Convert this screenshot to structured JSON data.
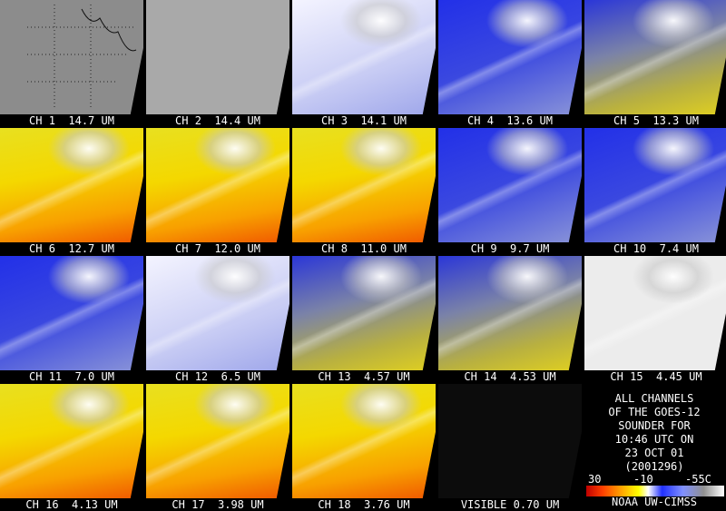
{
  "panels": [
    "CH 1  14.7 UM",
    "CH 2  14.4 UM",
    "CH 3  14.1 UM",
    "CH 4  13.6 UM",
    "CH 5  13.3 UM",
    "CH 6  12.7 UM",
    "CH 7  12.0 UM",
    "CH 8  11.0 UM",
    "CH 9  9.7 UM",
    "CH 10  7.4 UM",
    "CH 11  7.0 UM",
    "CH 12  6.5 UM",
    "CH 13  4.57 UM",
    "CH 14  4.53 UM",
    "CH 15  4.45 UM",
    "CH 16  4.13 UM",
    "CH 17  3.98 UM",
    "CH 18  3.76 UM",
    "VISIBLE 0.70 UM"
  ],
  "legend": {
    "lines": [
      "ALL CHANNELS",
      "OF THE GOES-12",
      "SOUNDER FOR",
      "10:46 UTC ON",
      "23 OCT 01",
      "(2001296)"
    ],
    "scale_labels": [
      "30",
      "-10",
      "-55C"
    ],
    "credit": "NOAA UW-CIMSS"
  }
}
